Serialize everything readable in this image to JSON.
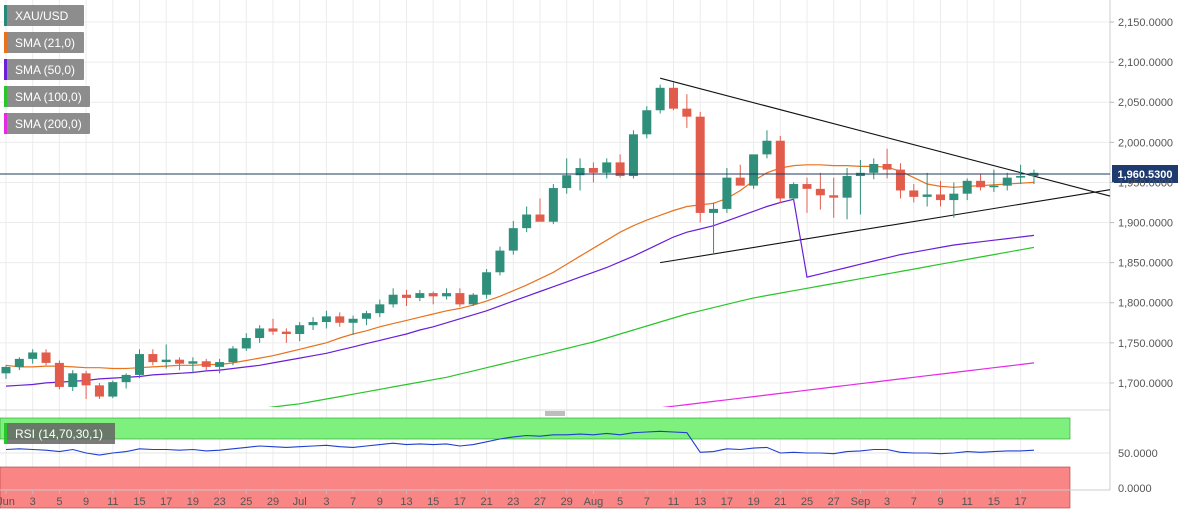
{
  "legend": {
    "items": [
      {
        "label": "XAU/USD",
        "color": "#26897a"
      },
      {
        "label": "SMA (21,0)",
        "color": "#e8731e"
      },
      {
        "label": "SMA (50,0)",
        "color": "#6a1fd6"
      },
      {
        "label": "SMA (100,0)",
        "color": "#2ac52a"
      },
      {
        "label": "SMA (200,0)",
        "color": "#e52ae5"
      }
    ],
    "rsi_label": "RSI (14,70,30,1)",
    "rsi_color": "#2ac52a"
  },
  "price_tag": "1,960.5300",
  "chart_data": [
    {
      "type": "candlestick",
      "title": "XAU/USD",
      "y_axis_side": "right",
      "ylim": [
        1670,
        2170
      ],
      "y_ticks": [
        "2,150.0000",
        "2,100.0000",
        "2,050.0000",
        "2,000.0000",
        "1,950.0000",
        "1,900.0000",
        "1,850.0000",
        "1,800.0000",
        "1,750.0000",
        "1,700.0000"
      ],
      "y_tick_values": [
        2150,
        2100,
        2050,
        2000,
        1950,
        1900,
        1850,
        1800,
        1750,
        1700
      ],
      "x_tick_labels": [
        "Jun",
        "3",
        "5",
        "9",
        "11",
        "15",
        "17",
        "19",
        "23",
        "25",
        "29",
        "Jul",
        "3",
        "7",
        "9",
        "13",
        "15",
        "17",
        "21",
        "23",
        "27",
        "29",
        "Aug",
        "5",
        "7",
        "11",
        "13",
        "17",
        "19",
        "21",
        "25",
        "27",
        "Sep",
        "3",
        "7",
        "9",
        "11",
        "15",
        "17"
      ],
      "x_tick_index": [
        0,
        2,
        4,
        6,
        8,
        10,
        12,
        14,
        16,
        18,
        20,
        22,
        24,
        26,
        28,
        30,
        32,
        34,
        36,
        38,
        40,
        42,
        44,
        46,
        48,
        50,
        52,
        54,
        56,
        58,
        60,
        62,
        64,
        66,
        68,
        70,
        72,
        74,
        76
      ],
      "last_price": 1960.53,
      "candles": [
        [
          1712,
          1722,
          1705,
          1720
        ],
        [
          1720,
          1732,
          1716,
          1730
        ],
        [
          1730,
          1742,
          1724,
          1738
        ],
        [
          1738,
          1742,
          1722,
          1725
        ],
        [
          1725,
          1728,
          1692,
          1695
        ],
        [
          1695,
          1716,
          1690,
          1712
        ],
        [
          1712,
          1715,
          1680,
          1697
        ],
        [
          1697,
          1700,
          1680,
          1683
        ],
        [
          1683,
          1703,
          1681,
          1701
        ],
        [
          1701,
          1712,
          1693,
          1710
        ],
        [
          1710,
          1742,
          1706,
          1736
        ],
        [
          1736,
          1742,
          1722,
          1726
        ],
        [
          1726,
          1748,
          1718,
          1729
        ],
        [
          1729,
          1732,
          1716,
          1724
        ],
        [
          1724,
          1732,
          1712,
          1727
        ],
        [
          1727,
          1730,
          1716,
          1720
        ],
        [
          1720,
          1730,
          1712,
          1726
        ],
        [
          1726,
          1746,
          1722,
          1743
        ],
        [
          1743,
          1762,
          1740,
          1756
        ],
        [
          1756,
          1772,
          1750,
          1768
        ],
        [
          1768,
          1780,
          1760,
          1764
        ],
        [
          1764,
          1768,
          1750,
          1761
        ],
        [
          1761,
          1776,
          1752,
          1772
        ],
        [
          1772,
          1782,
          1766,
          1776
        ],
        [
          1776,
          1790,
          1768,
          1783
        ],
        [
          1783,
          1788,
          1770,
          1775
        ],
        [
          1775,
          1784,
          1760,
          1780
        ],
        [
          1780,
          1790,
          1772,
          1787
        ],
        [
          1787,
          1804,
          1782,
          1798
        ],
        [
          1798,
          1818,
          1794,
          1810
        ],
        [
          1810,
          1816,
          1796,
          1806
        ],
        [
          1806,
          1816,
          1802,
          1812
        ],
        [
          1812,
          1814,
          1798,
          1808
        ],
        [
          1808,
          1818,
          1804,
          1812
        ],
        [
          1812,
          1818,
          1795,
          1798
        ],
        [
          1798,
          1812,
          1796,
          1810
        ],
        [
          1810,
          1842,
          1805,
          1838
        ],
        [
          1838,
          1870,
          1834,
          1865
        ],
        [
          1865,
          1902,
          1860,
          1893
        ],
        [
          1893,
          1920,
          1888,
          1910
        ],
        [
          1910,
          1930,
          1905,
          1901
        ],
        [
          1901,
          1948,
          1898,
          1943
        ],
        [
          1943,
          1980,
          1936,
          1959
        ],
        [
          1959,
          1980,
          1940,
          1968
        ],
        [
          1968,
          1975,
          1950,
          1962
        ],
        [
          1962,
          1980,
          1955,
          1975
        ],
        [
          1975,
          1985,
          1956,
          1958
        ],
        [
          1958,
          2015,
          1955,
          2010
        ],
        [
          2010,
          2045,
          2005,
          2040
        ],
        [
          2040,
          2072,
          2036,
          2068
        ],
        [
          2068,
          2075,
          2040,
          2042
        ],
        [
          2042,
          2060,
          2018,
          2032
        ],
        [
          2032,
          2038,
          1900,
          1912
        ],
        [
          1912,
          1925,
          1862,
          1917
        ],
        [
          1917,
          1968,
          1912,
          1956
        ],
        [
          1956,
          1972,
          1948,
          1946
        ],
        [
          1946,
          1982,
          1942,
          1985
        ],
        [
          1985,
          2015,
          1980,
          2002
        ],
        [
          2002,
          2008,
          1924,
          1930
        ],
        [
          1930,
          1950,
          1926,
          1948
        ],
        [
          1948,
          1956,
          1912,
          1942
        ],
        [
          1942,
          1962,
          1916,
          1934
        ],
        [
          1934,
          1956,
          1906,
          1931
        ],
        [
          1931,
          1968,
          1904,
          1958
        ],
        [
          1958,
          1978,
          1910,
          1962
        ],
        [
          1962,
          1980,
          1954,
          1973
        ],
        [
          1973,
          1992,
          1955,
          1966
        ],
        [
          1966,
          1974,
          1930,
          1940
        ],
        [
          1940,
          1948,
          1925,
          1932
        ],
        [
          1932,
          1962,
          1920,
          1935
        ],
        [
          1935,
          1952,
          1920,
          1928
        ],
        [
          1928,
          1950,
          1906,
          1936
        ],
        [
          1936,
          1955,
          1928,
          1952
        ],
        [
          1952,
          1960,
          1940,
          1944
        ],
        [
          1944,
          1966,
          1938,
          1946
        ],
        [
          1946,
          1962,
          1940,
          1956
        ],
        [
          1956,
          1972,
          1948,
          1958
        ],
        [
          1958,
          1966,
          1948,
          1962
        ]
      ],
      "sma21": [
        1722,
        1720,
        1720,
        1721,
        1721,
        1720,
        1719,
        1719,
        1718,
        1718,
        1719,
        1720,
        1721,
        1722,
        1722,
        1723,
        1723,
        1725,
        1728,
        1731,
        1734,
        1738,
        1742,
        1746,
        1750,
        1756,
        1761,
        1765,
        1770,
        1774,
        1778,
        1782,
        1786,
        1790,
        1793,
        1797,
        1802,
        1808,
        1815,
        1822,
        1830,
        1838,
        1848,
        1858,
        1868,
        1878,
        1888,
        1896,
        1903,
        1909,
        1915,
        1920,
        1922,
        1924,
        1930,
        1940,
        1952,
        1962,
        1968,
        1971,
        1972,
        1972,
        1971,
        1971,
        1970,
        1970,
        1969,
        1964,
        1956,
        1948,
        1945,
        1944,
        1945,
        1946,
        1947,
        1948,
        1949,
        1950
      ],
      "sma50": [
        1696,
        1697,
        1698,
        1700,
        1701,
        1702,
        1703,
        1705,
        1706,
        1707,
        1708,
        1710,
        1711,
        1712,
        1713,
        1715,
        1716,
        1718,
        1720,
        1722,
        1725,
        1728,
        1731,
        1734,
        1737,
        1741,
        1745,
        1749,
        1753,
        1757,
        1761,
        1766,
        1770,
        1775,
        1780,
        1785,
        1790,
        1796,
        1802,
        1808,
        1814,
        1820,
        1826,
        1832,
        1838,
        1844,
        1851,
        1858,
        1866,
        1874,
        1882,
        1888,
        1892,
        1896,
        1902,
        1908,
        1914,
        1920,
        1925,
        1929,
        1832,
        1836,
        1840,
        1844,
        1848,
        1852,
        1856,
        1860,
        1863,
        1866,
        1869,
        1872,
        1874,
        1876,
        1878,
        1880,
        1882,
        1884
      ],
      "sma100": [
        1640,
        1641,
        1642,
        1643,
        1645,
        1646,
        1647,
        1648,
        1649,
        1650,
        1652,
        1653,
        1655,
        1656,
        1658,
        1660,
        1662,
        1664,
        1666,
        1668,
        1670,
        1672,
        1674,
        1677,
        1680,
        1683,
        1686,
        1689,
        1692,
        1695,
        1698,
        1701,
        1704,
        1707,
        1711,
        1715,
        1719,
        1723,
        1727,
        1731,
        1735,
        1739,
        1743,
        1747,
        1751,
        1756,
        1761,
        1766,
        1771,
        1776,
        1781,
        1786,
        1790,
        1794,
        1798,
        1802,
        1806,
        1809,
        1812,
        1815,
        1818,
        1821,
        1824,
        1827,
        1830,
        1833,
        1836,
        1839,
        1842,
        1845,
        1848,
        1851,
        1854,
        1857,
        1860,
        1863,
        1866,
        1869
      ],
      "sma200": [
        1588,
        1589,
        1590,
        1591,
        1592,
        1593,
        1594,
        1595,
        1596,
        1597,
        1598,
        1599,
        1600,
        1601,
        1602,
        1603,
        1604,
        1605,
        1607,
        1609,
        1611,
        1613,
        1615,
        1617,
        1619,
        1621,
        1623,
        1625,
        1627,
        1629,
        1631,
        1633,
        1635,
        1637,
        1639,
        1641,
        1643,
        1645,
        1647,
        1649,
        1651,
        1653,
        1655,
        1657,
        1659,
        1661,
        1663,
        1665,
        1667,
        1669,
        1671,
        1673,
        1675,
        1677,
        1679,
        1681,
        1683,
        1685,
        1687,
        1689,
        1691,
        1693,
        1695,
        1697,
        1699,
        1701,
        1703,
        1705,
        1707,
        1709,
        1711,
        1713,
        1715,
        1717,
        1719,
        1721,
        1723,
        1725
      ]
    },
    {
      "type": "line",
      "title": "RSI (14,70,30,1)",
      "ylim": [
        0,
        100
      ],
      "y_ticks": [
        "50.0000",
        "0.0000"
      ],
      "y_tick_values": [
        50,
        0
      ],
      "overbought": 70,
      "oversold": 30,
      "values": [
        55,
        56,
        55,
        54,
        52,
        55,
        50,
        47,
        50,
        52,
        56,
        55,
        55,
        54,
        55,
        53,
        54,
        56,
        58,
        60,
        59,
        58,
        59,
        60,
        61,
        59,
        58,
        60,
        62,
        64,
        62,
        63,
        62,
        63,
        60,
        62,
        66,
        70,
        73,
        75,
        74,
        76,
        76,
        77,
        76,
        78,
        76,
        79,
        80,
        81,
        80,
        79,
        51,
        52,
        56,
        55,
        57,
        58,
        50,
        51,
        50,
        50,
        49,
        52,
        53,
        55,
        55,
        51,
        50,
        50,
        49,
        50,
        52,
        51,
        52,
        53,
        53,
        54
      ]
    }
  ]
}
